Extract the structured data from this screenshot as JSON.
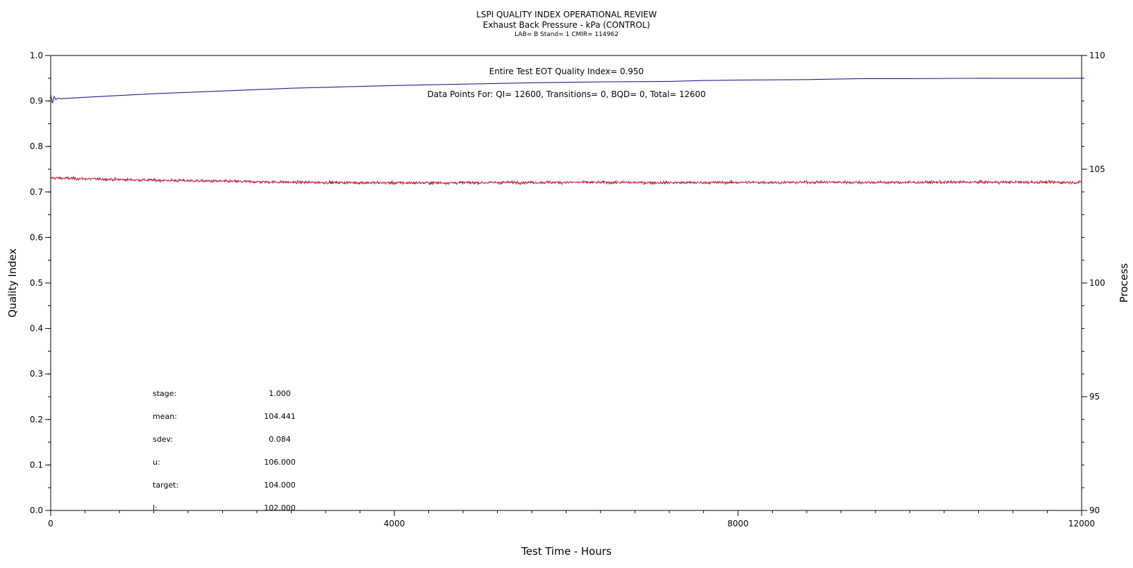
{
  "chart_data": {
    "type": "line",
    "title": "LSPI QUALITY INDEX OPERATIONAL REVIEW",
    "subtitle": "Exhaust Back Pressure - kPa (CONTROL)",
    "meta_line": "LAB= B Stand= 1 CMIR= 114962",
    "xlabel": "Test Time - Hours",
    "ylabel_left": "Quality Index",
    "ylabel_right": "Process",
    "xlim": [
      0,
      12000
    ],
    "ylim_left": [
      0.0,
      1.0
    ],
    "ylim_right": [
      90,
      110
    ],
    "x_ticks": [
      "0",
      "4000",
      "8000",
      "12000"
    ],
    "y_left_ticks": [
      "0.0",
      "0.1",
      "0.2",
      "0.3",
      "0.4",
      "0.5",
      "0.6",
      "0.7",
      "0.8",
      "0.9",
      "1.0"
    ],
    "y_right_ticks": [
      "90",
      "95",
      "100",
      "105",
      "110"
    ],
    "grid": false,
    "annotations": {
      "eot": "Entire Test EOT Quality Index=   0.950",
      "points": "Data Points For: QI= 12600, Transitions=     0, BQD=     0, Total= 12600"
    },
    "stats": [
      {
        "label": "stage:",
        "value": "1.000"
      },
      {
        "label": "mean:",
        "value": "104.441"
      },
      {
        "label": "sdev:",
        "value": "0.084"
      },
      {
        "label": "u:",
        "value": "106.000"
      },
      {
        "label": "target:",
        "value": "104.000"
      },
      {
        "label": "l:",
        "value": "102.000"
      }
    ],
    "series": [
      {
        "axis": "left",
        "color": "#1f1f8f",
        "x": [
          0,
          20,
          40,
          60,
          80,
          120,
          200,
          400,
          800,
          1200,
          1600,
          2000,
          2400,
          2800,
          3200,
          3600,
          4000,
          4800,
          5600,
          6400,
          7200,
          7600,
          8000,
          8800,
          9400,
          10000,
          10800,
          11600,
          12000
        ],
        "y": [
          0.915,
          0.895,
          0.91,
          0.903,
          0.906,
          0.905,
          0.906,
          0.908,
          0.912,
          0.916,
          0.919,
          0.922,
          0.925,
          0.928,
          0.93,
          0.932,
          0.934,
          0.937,
          0.94,
          0.942,
          0.943,
          0.945,
          0.946,
          0.947,
          0.949,
          0.949,
          0.95,
          0.95,
          0.95
        ]
      },
      {
        "axis": "right",
        "color": "#c0142d",
        "x": [
          0,
          500,
          1000,
          1500,
          2000,
          2500,
          3000,
          3500,
          4000,
          4500,
          5000,
          5500,
          6000,
          6500,
          7000,
          7500,
          8000,
          8500,
          9000,
          9500,
          10000,
          10500,
          11000,
          11500,
          12000
        ],
        "y": [
          104.62,
          104.57,
          104.53,
          104.5,
          104.47,
          104.44,
          104.42,
          104.41,
          104.4,
          104.4,
          104.41,
          104.42,
          104.42,
          104.42,
          104.41,
          104.41,
          104.42,
          104.42,
          104.43,
          104.42,
          104.42,
          104.43,
          104.43,
          104.43,
          104.42
        ],
        "noise_sd": 0.084
      }
    ]
  }
}
